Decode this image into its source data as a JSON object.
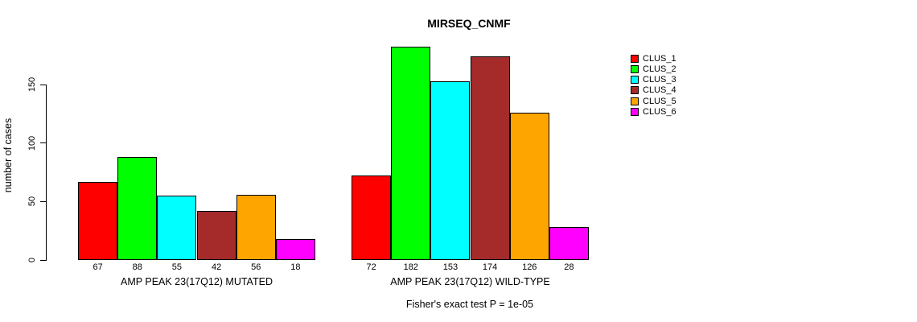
{
  "chart_data": {
    "type": "bar",
    "title": "MIRSEQ_CNMF",
    "ylabel": "number of cases",
    "xlabel": "",
    "ylim": [
      0,
      150
    ],
    "yticks": [
      0,
      50,
      100,
      150
    ],
    "grid": false,
    "legend_position": "right-outside",
    "series_names": [
      "CLUS_1",
      "CLUS_2",
      "CLUS_3",
      "CLUS_4",
      "CLUS_5",
      "CLUS_6"
    ],
    "series_colors": [
      "#ff0000",
      "#00ff00",
      "#00ffff",
      "#a52a2a",
      "#ffa500",
      "#ff00ff"
    ],
    "groups": [
      {
        "label": "AMP PEAK 23(17Q12) MUTATED",
        "values": [
          67,
          88,
          55,
          42,
          56,
          18
        ]
      },
      {
        "label": "AMP PEAK 23(17Q12) WILD-TYPE",
        "values": [
          72,
          182,
          153,
          174,
          126,
          28
        ]
      }
    ],
    "bar_value_labels_shown": true,
    "footnote": "Fisher's exact test P = 1e-05",
    "axis_color": "#000000",
    "background_color": "#ffffff"
  }
}
